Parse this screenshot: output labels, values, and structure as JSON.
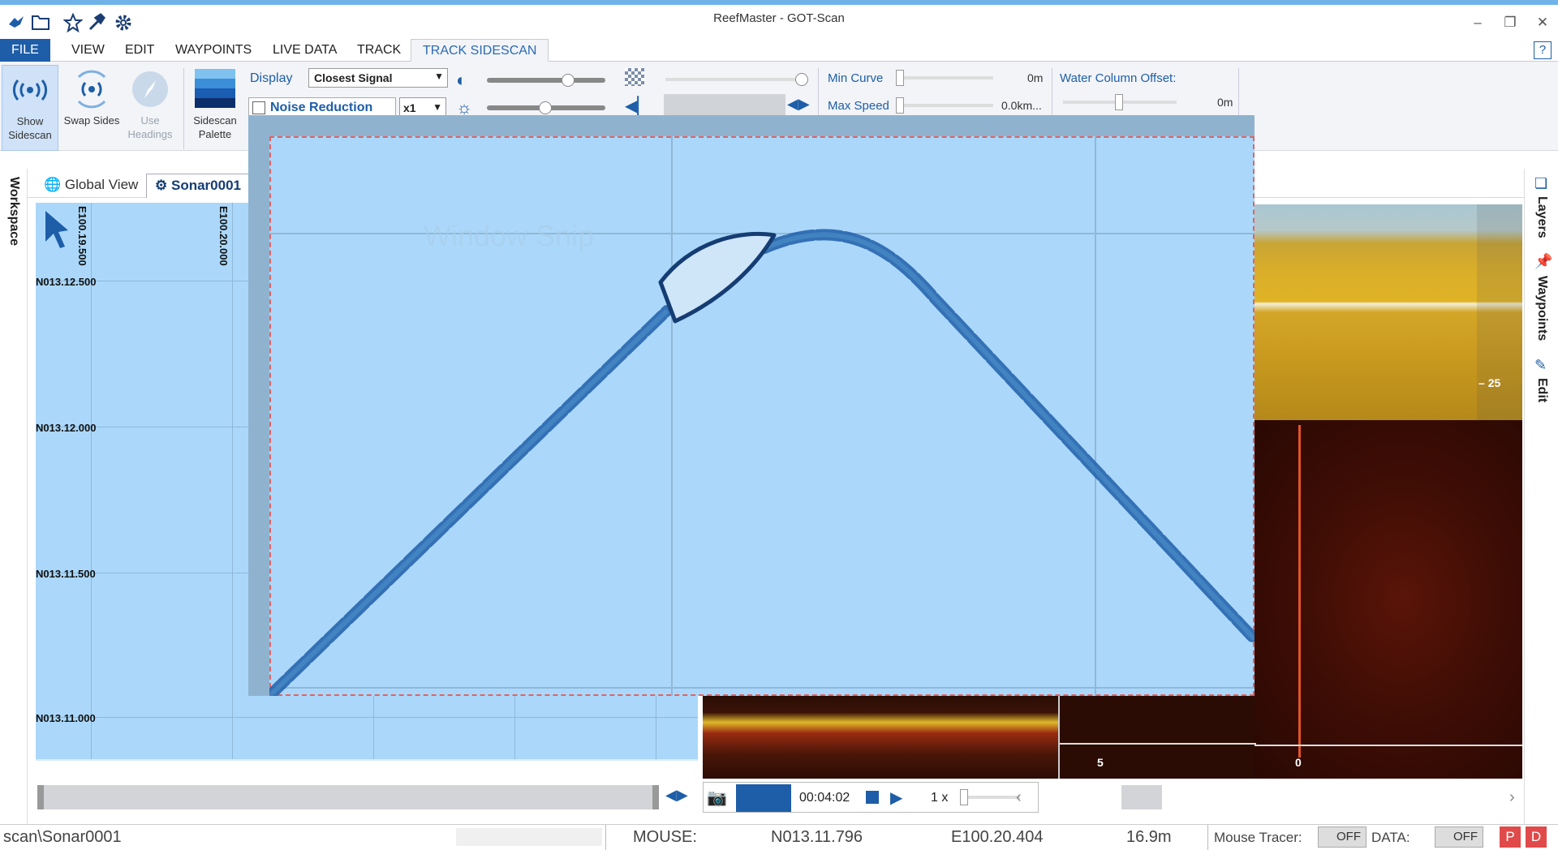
{
  "window": {
    "title": "ReefMaster - GOT-Scan"
  },
  "menu": {
    "items": [
      "FILE",
      "VIEW",
      "EDIT",
      "WAYPOINTS",
      "LIVE DATA",
      "TRACK",
      "TRACK SIDESCAN"
    ],
    "help": "?"
  },
  "ribbon": {
    "show_sidescan": "Show Sidescan",
    "swap_sides": "Swap Sides",
    "use_headings": "Use Headings",
    "sidescan_palette": "Sidescan Palette",
    "display_label": "Display",
    "display_value": "Closest Signal",
    "noise_reduction": "Noise Reduction",
    "noise_mult": "x1",
    "min_curve_label": "Min Curve",
    "min_curve_value": "0m",
    "max_speed_label": "Max Speed",
    "max_speed_value": "0.0km...",
    "water_column_label": "Water Column Offset:",
    "water_column_value": "0m"
  },
  "side": {
    "workspace": "Workspace",
    "layers": "Layers",
    "waypoints": "Waypoints",
    "edit": "Edit"
  },
  "tabs": [
    "Global View",
    "Sonar0001"
  ],
  "map": {
    "x_labels": [
      "E100.19.500",
      "E100.20.000"
    ],
    "y_labels": [
      "N013.12.500",
      "N013.12.000",
      "N013.11.500",
      "N013.11.000"
    ]
  },
  "sonar": {
    "depth_tick": "25",
    "scale_left": "5",
    "scale_right": "0"
  },
  "playback": {
    "time": "00:04:02",
    "speed": "1 x"
  },
  "snip": {
    "watermark": "Window Snip"
  },
  "status": {
    "path": "scan\\Sonar0001",
    "mouse_label": "MOUSE:",
    "lat": "N013.11.796",
    "lon": "E100.20.404",
    "depth": "16.9m",
    "tracer_label": "Mouse Tracer:",
    "tracer_state": "OFF",
    "data_label": "DATA:",
    "data_state": "OFF",
    "p": "P",
    "d": "D"
  }
}
